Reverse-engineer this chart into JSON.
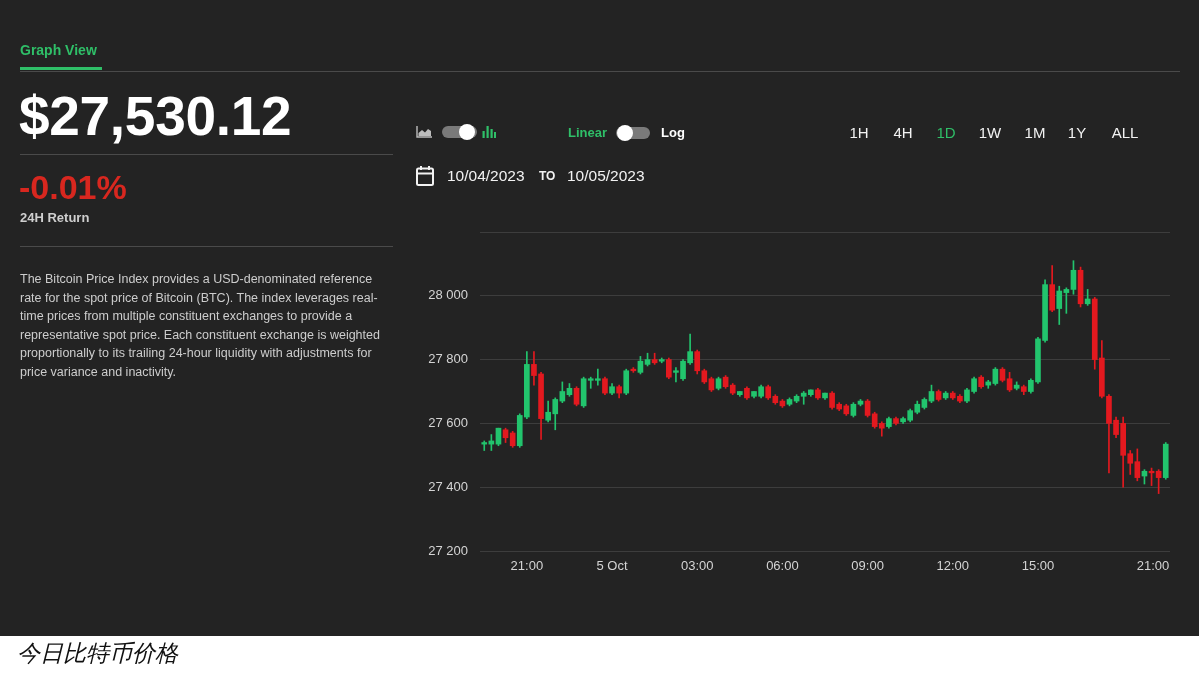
{
  "chart_data": {
    "type": "candlestick",
    "annotations": [
      "Graph View",
      "$27,530.12",
      "-0.01%",
      "24H Return",
      "The Bitcoin Price Index provides a USD-denominated reference rate for the spot price of Bitcoin (BTC). The index leverages real-time prices from multiple constituent exchanges to provide a representative spot price. Each constituent exchange is weighted proportionally to its trailing 24-hour liquidity with adjustments for price variance and inactivity.",
      "Linear",
      "Log",
      "1H",
      "4H",
      "1D",
      "1W",
      "1M",
      "1Y",
      "ALL",
      "10/04/2023",
      "TO",
      "10/05/2023",
      "今日比特币价格"
    ],
    "x": [
      "2023-10-04T19:30",
      "2023-10-04T19:45",
      "2023-10-04T20:00",
      "2023-10-04T20:15",
      "2023-10-04T20:30",
      "2023-10-04T20:45",
      "2023-10-04T21:00",
      "2023-10-04T21:15",
      "2023-10-04T21:30",
      "2023-10-04T21:45",
      "2023-10-04T22:00",
      "2023-10-04T22:15",
      "2023-10-04T22:30",
      "2023-10-04T22:45",
      "2023-10-04T23:00",
      "2023-10-04T23:15",
      "2023-10-04T23:30",
      "2023-10-04T23:45",
      "2023-10-05T00:00",
      "2023-10-05T00:15",
      "2023-10-05T00:30",
      "2023-10-05T00:45",
      "2023-10-05T01:00",
      "2023-10-05T01:15",
      "2023-10-05T01:30",
      "2023-10-05T01:45",
      "2023-10-05T02:00",
      "2023-10-05T02:15",
      "2023-10-05T02:30",
      "2023-10-05T02:45",
      "2023-10-05T03:00",
      "2023-10-05T03:15",
      "2023-10-05T03:30",
      "2023-10-05T03:45",
      "2023-10-05T04:00",
      "2023-10-05T04:15",
      "2023-10-05T04:30",
      "2023-10-05T04:45",
      "2023-10-05T05:00",
      "2023-10-05T05:15",
      "2023-10-05T05:30",
      "2023-10-05T05:45",
      "2023-10-05T06:00",
      "2023-10-05T06:15",
      "2023-10-05T06:30",
      "2023-10-05T06:45",
      "2023-10-05T07:00",
      "2023-10-05T07:15",
      "2023-10-05T07:30",
      "2023-10-05T07:45",
      "2023-10-05T08:00",
      "2023-10-05T08:15",
      "2023-10-05T08:30",
      "2023-10-05T08:45",
      "2023-10-05T09:00",
      "2023-10-05T09:15",
      "2023-10-05T09:30",
      "2023-10-05T09:45",
      "2023-10-05T10:00",
      "2023-10-05T10:15",
      "2023-10-05T10:30",
      "2023-10-05T10:45",
      "2023-10-05T11:00",
      "2023-10-05T11:15",
      "2023-10-05T11:30",
      "2023-10-05T11:45",
      "2023-10-05T12:00",
      "2023-10-05T12:15",
      "2023-10-05T12:30",
      "2023-10-05T12:45",
      "2023-10-05T13:00",
      "2023-10-05T13:15",
      "2023-10-05T13:30",
      "2023-10-05T13:45",
      "2023-10-05T14:00",
      "2023-10-05T14:15",
      "2023-10-05T14:30",
      "2023-10-05T14:45",
      "2023-10-05T15:00",
      "2023-10-05T15:15",
      "2023-10-05T15:30",
      "2023-10-05T15:45",
      "2023-10-05T16:00",
      "2023-10-05T16:15",
      "2023-10-05T16:30",
      "2023-10-05T16:45",
      "2023-10-05T17:00",
      "2023-10-05T17:15",
      "2023-10-05T17:30",
      "2023-10-05T17:45",
      "2023-10-05T18:00",
      "2023-10-05T18:15",
      "2023-10-05T18:30",
      "2023-10-05T18:45",
      "2023-10-05T19:00",
      "2023-10-05T19:15",
      "2023-10-05T19:30"
    ],
    "ohlc": [
      [
        27535,
        27545,
        27515,
        27540
      ],
      [
        27535,
        27565,
        27515,
        27545
      ],
      [
        27535,
        27585,
        27530,
        27585
      ],
      [
        27580,
        27585,
        27540,
        27555
      ],
      [
        27570,
        27575,
        27525,
        27530
      ],
      [
        27530,
        27630,
        27525,
        27625
      ],
      [
        27620,
        27825,
        27615,
        27785
      ],
      [
        27785,
        27825,
        27720,
        27750
      ],
      [
        27755,
        27760,
        27550,
        27615
      ],
      [
        27610,
        27670,
        27605,
        27635
      ],
      [
        27630,
        27680,
        27580,
        27675
      ],
      [
        27670,
        27730,
        27665,
        27700
      ],
      [
        27690,
        27725,
        27685,
        27710
      ],
      [
        27710,
        27715,
        27655,
        27660
      ],
      [
        27655,
        27745,
        27650,
        27740
      ],
      [
        27735,
        27745,
        27710,
        27740
      ],
      [
        27735,
        27770,
        27720,
        27740
      ],
      [
        27740,
        27745,
        27690,
        27695
      ],
      [
        27695,
        27725,
        27690,
        27715
      ],
      [
        27715,
        27720,
        27680,
        27695
      ],
      [
        27695,
        27770,
        27690,
        27765
      ],
      [
        27770,
        27775,
        27760,
        27765
      ],
      [
        27760,
        27810,
        27755,
        27795
      ],
      [
        27785,
        27820,
        27780,
        27800
      ],
      [
        27800,
        27820,
        27785,
        27790
      ],
      [
        27795,
        27805,
        27790,
        27800
      ],
      [
        27800,
        27805,
        27740,
        27745
      ],
      [
        27760,
        27775,
        27730,
        27765
      ],
      [
        27740,
        27800,
        27735,
        27795
      ],
      [
        27790,
        27880,
        27785,
        27825
      ],
      [
        27825,
        27830,
        27755,
        27765
      ],
      [
        27765,
        27770,
        27725,
        27730
      ],
      [
        27740,
        27745,
        27700,
        27705
      ],
      [
        27710,
        27745,
        27705,
        27740
      ],
      [
        27745,
        27750,
        27710,
        27715
      ],
      [
        27720,
        27725,
        27690,
        27695
      ],
      [
        27690,
        27700,
        27685,
        27700
      ],
      [
        27710,
        27715,
        27675,
        27680
      ],
      [
        27685,
        27700,
        27680,
        27700
      ],
      [
        27685,
        27720,
        27680,
        27715
      ],
      [
        27715,
        27720,
        27675,
        27680
      ],
      [
        27685,
        27690,
        27660,
        27665
      ],
      [
        27670,
        27675,
        27650,
        27655
      ],
      [
        27660,
        27680,
        27655,
        27675
      ],
      [
        27670,
        27690,
        27665,
        27685
      ],
      [
        27685,
        27700,
        27660,
        27695
      ],
      [
        27690,
        27705,
        27685,
        27705
      ],
      [
        27705,
        27710,
        27675,
        27680
      ],
      [
        27680,
        27695,
        27675,
        27695
      ],
      [
        27695,
        27700,
        27645,
        27650
      ],
      [
        27660,
        27665,
        27640,
        27645
      ],
      [
        27655,
        27660,
        27625,
        27630
      ],
      [
        27625,
        27665,
        27620,
        27660
      ],
      [
        27660,
        27675,
        27655,
        27670
      ],
      [
        27670,
        27675,
        27620,
        27625
      ],
      [
        27630,
        27635,
        27585,
        27590
      ],
      [
        27600,
        27605,
        27560,
        27585
      ],
      [
        27590,
        27620,
        27585,
        27615
      ],
      [
        27615,
        27620,
        27595,
        27600
      ],
      [
        27605,
        27620,
        27600,
        27615
      ],
      [
        27610,
        27645,
        27605,
        27640
      ],
      [
        27635,
        27670,
        27630,
        27660
      ],
      [
        27650,
        27680,
        27645,
        27675
      ],
      [
        27670,
        27720,
        27665,
        27700
      ],
      [
        27700,
        27705,
        27670,
        27675
      ],
      [
        27680,
        27700,
        27675,
        27695
      ],
      [
        27695,
        27700,
        27675,
        27680
      ],
      [
        27685,
        27690,
        27665,
        27670
      ],
      [
        27670,
        27710,
        27665,
        27705
      ],
      [
        27700,
        27745,
        27695,
        27740
      ],
      [
        27745,
        27750,
        27710,
        27715
      ],
      [
        27720,
        27735,
        27710,
        27730
      ],
      [
        27725,
        27775,
        27720,
        27770
      ],
      [
        27770,
        27775,
        27730,
        27735
      ],
      [
        27740,
        27760,
        27700,
        27705
      ],
      [
        27710,
        27730,
        27705,
        27720
      ],
      [
        27715,
        27720,
        27690,
        27700
      ],
      [
        27700,
        27740,
        27695,
        27735
      ],
      [
        27730,
        27870,
        27725,
        27865
      ],
      [
        27860,
        28050,
        27855,
        28035
      ],
      [
        28035,
        28095,
        27950,
        27955
      ],
      [
        27960,
        28030,
        27910,
        28015
      ],
      [
        28010,
        28025,
        27945,
        28020
      ],
      [
        28020,
        28110,
        28005,
        28080
      ],
      [
        28080,
        28090,
        27965,
        27975
      ],
      [
        27975,
        28020,
        27970,
        27990
      ],
      [
        27990,
        27995,
        27770,
        27800
      ],
      [
        27805,
        27860,
        27680,
        27685
      ],
      [
        27685,
        27690,
        27445,
        27600
      ],
      [
        27610,
        27620,
        27555,
        27565
      ],
      [
        27600,
        27620,
        27400,
        27500
      ],
      [
        27505,
        27515,
        27440,
        27475
      ],
      [
        27480,
        27520,
        27420,
        27430
      ],
      [
        27435,
        27455,
        27410,
        27450
      ],
      [
        27450,
        27460,
        27405,
        27445
      ],
      [
        27450,
        27455,
        27380,
        27430
      ],
      [
        27430,
        27540,
        27425,
        27535
      ]
    ],
    "colors": [
      "#22c46d",
      "#22c46d",
      "#22c46d",
      "#e3191f",
      "#e3191f",
      "#22c46d",
      "#22c46d",
      "#e3191f",
      "#e3191f",
      "#22c46d",
      "#22c46d",
      "#22c46d",
      "#22c46d",
      "#e3191f",
      "#22c46d",
      "#22c46d",
      "#22c46d",
      "#e3191f",
      "#22c46d",
      "#e3191f",
      "#22c46d",
      "#e3191f",
      "#22c46d",
      "#22c46d",
      "#e3191f",
      "#22c46d",
      "#e3191f",
      "#22c46d",
      "#22c46d",
      "#22c46d",
      "#e3191f",
      "#e3191f",
      "#e3191f",
      "#22c46d",
      "#e3191f",
      "#e3191f",
      "#22c46d",
      "#e3191f",
      "#22c46d",
      "#22c46d",
      "#e3191f",
      "#e3191f",
      "#e3191f",
      "#22c46d",
      "#22c46d",
      "#22c46d",
      "#22c46d",
      "#e3191f",
      "#22c46d",
      "#e3191f",
      "#e3191f",
      "#e3191f",
      "#22c46d",
      "#22c46d",
      "#e3191f",
      "#e3191f",
      "#e3191f",
      "#22c46d",
      "#e3191f",
      "#22c46d",
      "#22c46d",
      "#22c46d",
      "#22c46d",
      "#22c46d",
      "#e3191f",
      "#22c46d",
      "#e3191f",
      "#e3191f",
      "#22c46d",
      "#22c46d",
      "#e3191f",
      "#22c46d",
      "#22c46d",
      "#e3191f",
      "#e3191f",
      "#22c46d",
      "#e3191f",
      "#22c46d",
      "#22c46d",
      "#22c46d",
      "#e3191f",
      "#22c46d",
      "#22c46d",
      "#22c46d",
      "#e3191f",
      "#22c46d",
      "#e3191f",
      "#e3191f",
      "#e3191f",
      "#e3191f",
      "#e3191f",
      "#e3191f",
      "#e3191f",
      "#22c46d",
      "#e3191f",
      "#e3191f",
      "#22c46d"
    ],
    "xlim": [
      "2023-10-04T19:21",
      "2023-10-05T19:39"
    ],
    "xticks": [
      {
        "value": "2023-10-04T21:00",
        "label": "21:00"
      },
      {
        "value": "2023-10-05T00:00",
        "label": "5 Oct"
      },
      {
        "value": "2023-10-05T03:00",
        "label": "03:00"
      },
      {
        "value": "2023-10-05T06:00",
        "label": "06:00"
      },
      {
        "value": "2023-10-05T09:00",
        "label": "09:00"
      },
      {
        "value": "2023-10-05T12:00",
        "label": "12:00"
      },
      {
        "value": "2023-10-05T15:00",
        "label": "15:00"
      },
      {
        "value": "2023-10-05T19:03",
        "label": "21:00"
      }
    ],
    "ylim": [
      27200,
      28200
    ],
    "yticks": [
      {
        "value": 27200,
        "label": "27 200"
      },
      {
        "value": 27400,
        "label": "27 400"
      },
      {
        "value": 27600,
        "label": "27 600"
      },
      {
        "value": 27800,
        "label": "27 800"
      },
      {
        "value": 28000,
        "label": "28 000"
      },
      {
        "value": 28200,
        "label": null
      }
    ],
    "grid": "y"
  }
}
